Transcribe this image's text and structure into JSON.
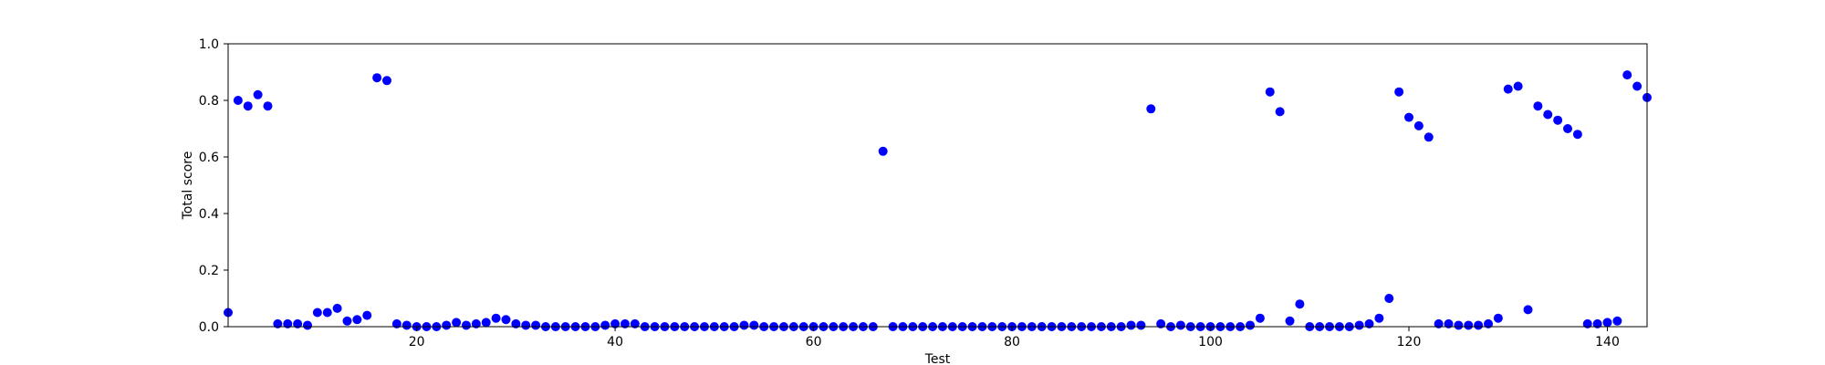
{
  "chart_data": {
    "type": "scatter",
    "title": "",
    "xlabel": "Test",
    "ylabel": "Total score",
    "xlim": [
      1,
      144
    ],
    "ylim": [
      0.0,
      1.0
    ],
    "x_ticks": [
      20,
      40,
      60,
      80,
      100,
      120,
      140
    ],
    "y_ticks": [
      0.0,
      0.2,
      0.4,
      0.6,
      0.8,
      1.0
    ],
    "x_tick_labels": [
      "20",
      "40",
      "60",
      "80",
      "100",
      "120",
      "140"
    ],
    "y_tick_labels": [
      "0.0",
      "0.2",
      "0.4",
      "0.6",
      "0.8",
      "1.0"
    ],
    "grid": false,
    "marker_color": "#0000ff",
    "series": [
      {
        "points": [
          [
            1,
            0.05
          ],
          [
            2,
            0.8
          ],
          [
            3,
            0.78
          ],
          [
            4,
            0.82
          ],
          [
            5,
            0.78
          ],
          [
            6,
            0.01
          ],
          [
            7,
            0.01
          ],
          [
            8,
            0.01
          ],
          [
            9,
            0.005
          ],
          [
            10,
            0.05
          ],
          [
            11,
            0.05
          ],
          [
            12,
            0.065
          ],
          [
            13,
            0.02
          ],
          [
            14,
            0.025
          ],
          [
            15,
            0.04
          ],
          [
            16,
            0.88
          ],
          [
            17,
            0.87
          ],
          [
            18,
            0.01
          ],
          [
            19,
            0.005
          ],
          [
            20,
            0.0
          ],
          [
            21,
            0.0
          ],
          [
            22,
            0.0
          ],
          [
            23,
            0.005
          ],
          [
            24,
            0.015
          ],
          [
            25,
            0.005
          ],
          [
            26,
            0.01
          ],
          [
            27,
            0.015
          ],
          [
            28,
            0.03
          ],
          [
            29,
            0.025
          ],
          [
            30,
            0.01
          ],
          [
            31,
            0.005
          ],
          [
            32,
            0.005
          ],
          [
            33,
            0.0
          ],
          [
            34,
            0.0
          ],
          [
            35,
            0.0
          ],
          [
            36,
            0.0
          ],
          [
            37,
            0.0
          ],
          [
            38,
            0.0
          ],
          [
            39,
            0.005
          ],
          [
            40,
            0.01
          ],
          [
            41,
            0.01
          ],
          [
            42,
            0.01
          ],
          [
            43,
            0.0
          ],
          [
            44,
            0.0
          ],
          [
            45,
            0.0
          ],
          [
            46,
            0.0
          ],
          [
            47,
            0.0
          ],
          [
            48,
            0.0
          ],
          [
            49,
            0.0
          ],
          [
            50,
            0.0
          ],
          [
            51,
            0.0
          ],
          [
            52,
            0.0
          ],
          [
            53,
            0.005
          ],
          [
            54,
            0.005
          ],
          [
            55,
            0.0
          ],
          [
            56,
            0.0
          ],
          [
            57,
            0.0
          ],
          [
            58,
            0.0
          ],
          [
            59,
            0.0
          ],
          [
            60,
            0.0
          ],
          [
            61,
            0.0
          ],
          [
            62,
            0.0
          ],
          [
            63,
            0.0
          ],
          [
            64,
            0.0
          ],
          [
            65,
            0.0
          ],
          [
            66,
            0.0
          ],
          [
            67,
            0.62
          ],
          [
            68,
            0.0
          ],
          [
            69,
            0.0
          ],
          [
            70,
            0.0
          ],
          [
            71,
            0.0
          ],
          [
            72,
            0.0
          ],
          [
            73,
            0.0
          ],
          [
            74,
            0.0
          ],
          [
            75,
            0.0
          ],
          [
            76,
            0.0
          ],
          [
            77,
            0.0
          ],
          [
            78,
            0.0
          ],
          [
            79,
            0.0
          ],
          [
            80,
            0.0
          ],
          [
            81,
            0.0
          ],
          [
            82,
            0.0
          ],
          [
            83,
            0.0
          ],
          [
            84,
            0.0
          ],
          [
            85,
            0.0
          ],
          [
            86,
            0.0
          ],
          [
            87,
            0.0
          ],
          [
            88,
            0.0
          ],
          [
            89,
            0.0
          ],
          [
            90,
            0.0
          ],
          [
            91,
            0.0
          ],
          [
            92,
            0.005
          ],
          [
            93,
            0.005
          ],
          [
            94,
            0.77
          ],
          [
            95,
            0.01
          ],
          [
            96,
            0.0
          ],
          [
            97,
            0.005
          ],
          [
            98,
            0.0
          ],
          [
            99,
            0.0
          ],
          [
            100,
            0.0
          ],
          [
            101,
            0.0
          ],
          [
            102,
            0.0
          ],
          [
            103,
            0.0
          ],
          [
            104,
            0.005
          ],
          [
            105,
            0.03
          ],
          [
            106,
            0.83
          ],
          [
            107,
            0.76
          ],
          [
            108,
            0.02
          ],
          [
            109,
            0.08
          ],
          [
            110,
            0.0
          ],
          [
            111,
            0.0
          ],
          [
            112,
            0.0
          ],
          [
            113,
            0.0
          ],
          [
            114,
            0.0
          ],
          [
            115,
            0.005
          ],
          [
            116,
            0.01
          ],
          [
            117,
            0.03
          ],
          [
            118,
            0.1
          ],
          [
            119,
            0.83
          ],
          [
            120,
            0.74
          ],
          [
            121,
            0.71
          ],
          [
            122,
            0.67
          ],
          [
            123,
            0.01
          ],
          [
            124,
            0.01
          ],
          [
            125,
            0.005
          ],
          [
            126,
            0.005
          ],
          [
            127,
            0.005
          ],
          [
            128,
            0.01
          ],
          [
            129,
            0.03
          ],
          [
            130,
            0.84
          ],
          [
            131,
            0.85
          ],
          [
            132,
            0.06
          ],
          [
            133,
            0.78
          ],
          [
            134,
            0.75
          ],
          [
            135,
            0.73
          ],
          [
            136,
            0.7
          ],
          [
            137,
            0.68
          ],
          [
            138,
            0.01
          ],
          [
            139,
            0.01
          ],
          [
            140,
            0.015
          ],
          [
            141,
            0.02
          ],
          [
            142,
            0.89
          ],
          [
            143,
            0.85
          ],
          [
            144,
            0.81
          ]
        ]
      }
    ]
  }
}
